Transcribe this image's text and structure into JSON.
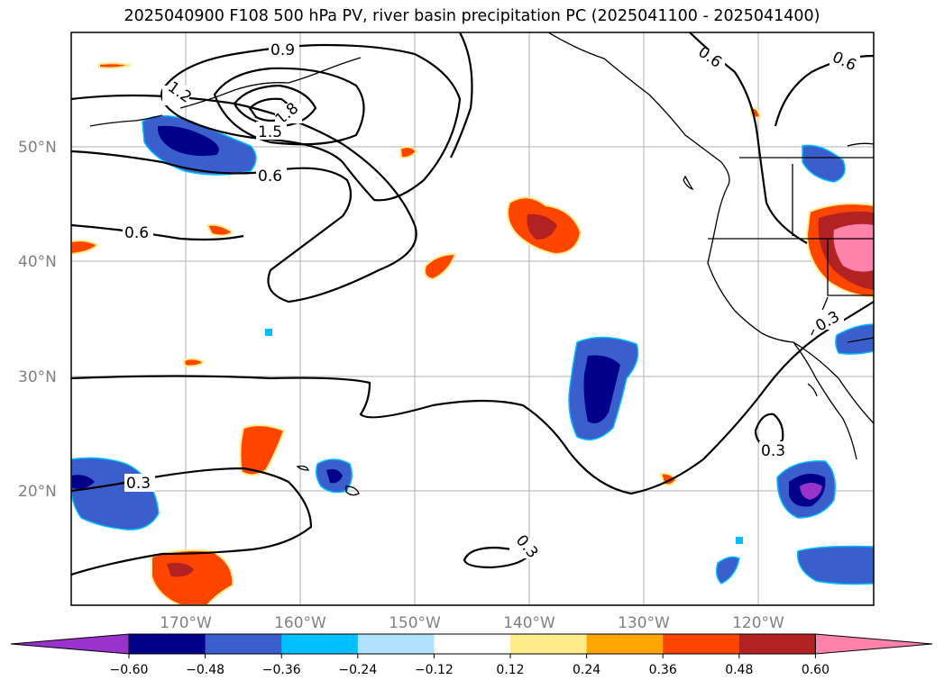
{
  "title": "2025040900 F108 500 hPa PV, river basin precipitation PC (2025041100 - 2025041400)",
  "map": {
    "lat_labels": [
      "50°N",
      "40°N",
      "30°N",
      "20°N"
    ],
    "lon_labels": [
      "170°W",
      "160°W",
      "150°W",
      "140°W",
      "130°W",
      "120°W"
    ],
    "contour_labels": [
      "0.9",
      "1.2",
      "1.8",
      "1.5",
      "0.6",
      "0.6",
      "0.6",
      "0.6",
      "0.3",
      "0.3",
      "0.3",
      "0.3"
    ],
    "gridlines": true
  },
  "colorbar": {
    "ticks": [
      "−0.60",
      "−0.48",
      "−0.36",
      "−0.24",
      "−0.12",
      "0.12",
      "0.24",
      "0.36",
      "0.48",
      "0.60"
    ],
    "colors": [
      "#9933cc",
      "#00008b",
      "#3a5fcd",
      "#00bfff",
      "#b0e2ff",
      "#ffffff",
      "#ffec8b",
      "#ffa500",
      "#ff4500",
      "#b22222",
      "#ff82ab"
    ],
    "extend": "both"
  }
}
